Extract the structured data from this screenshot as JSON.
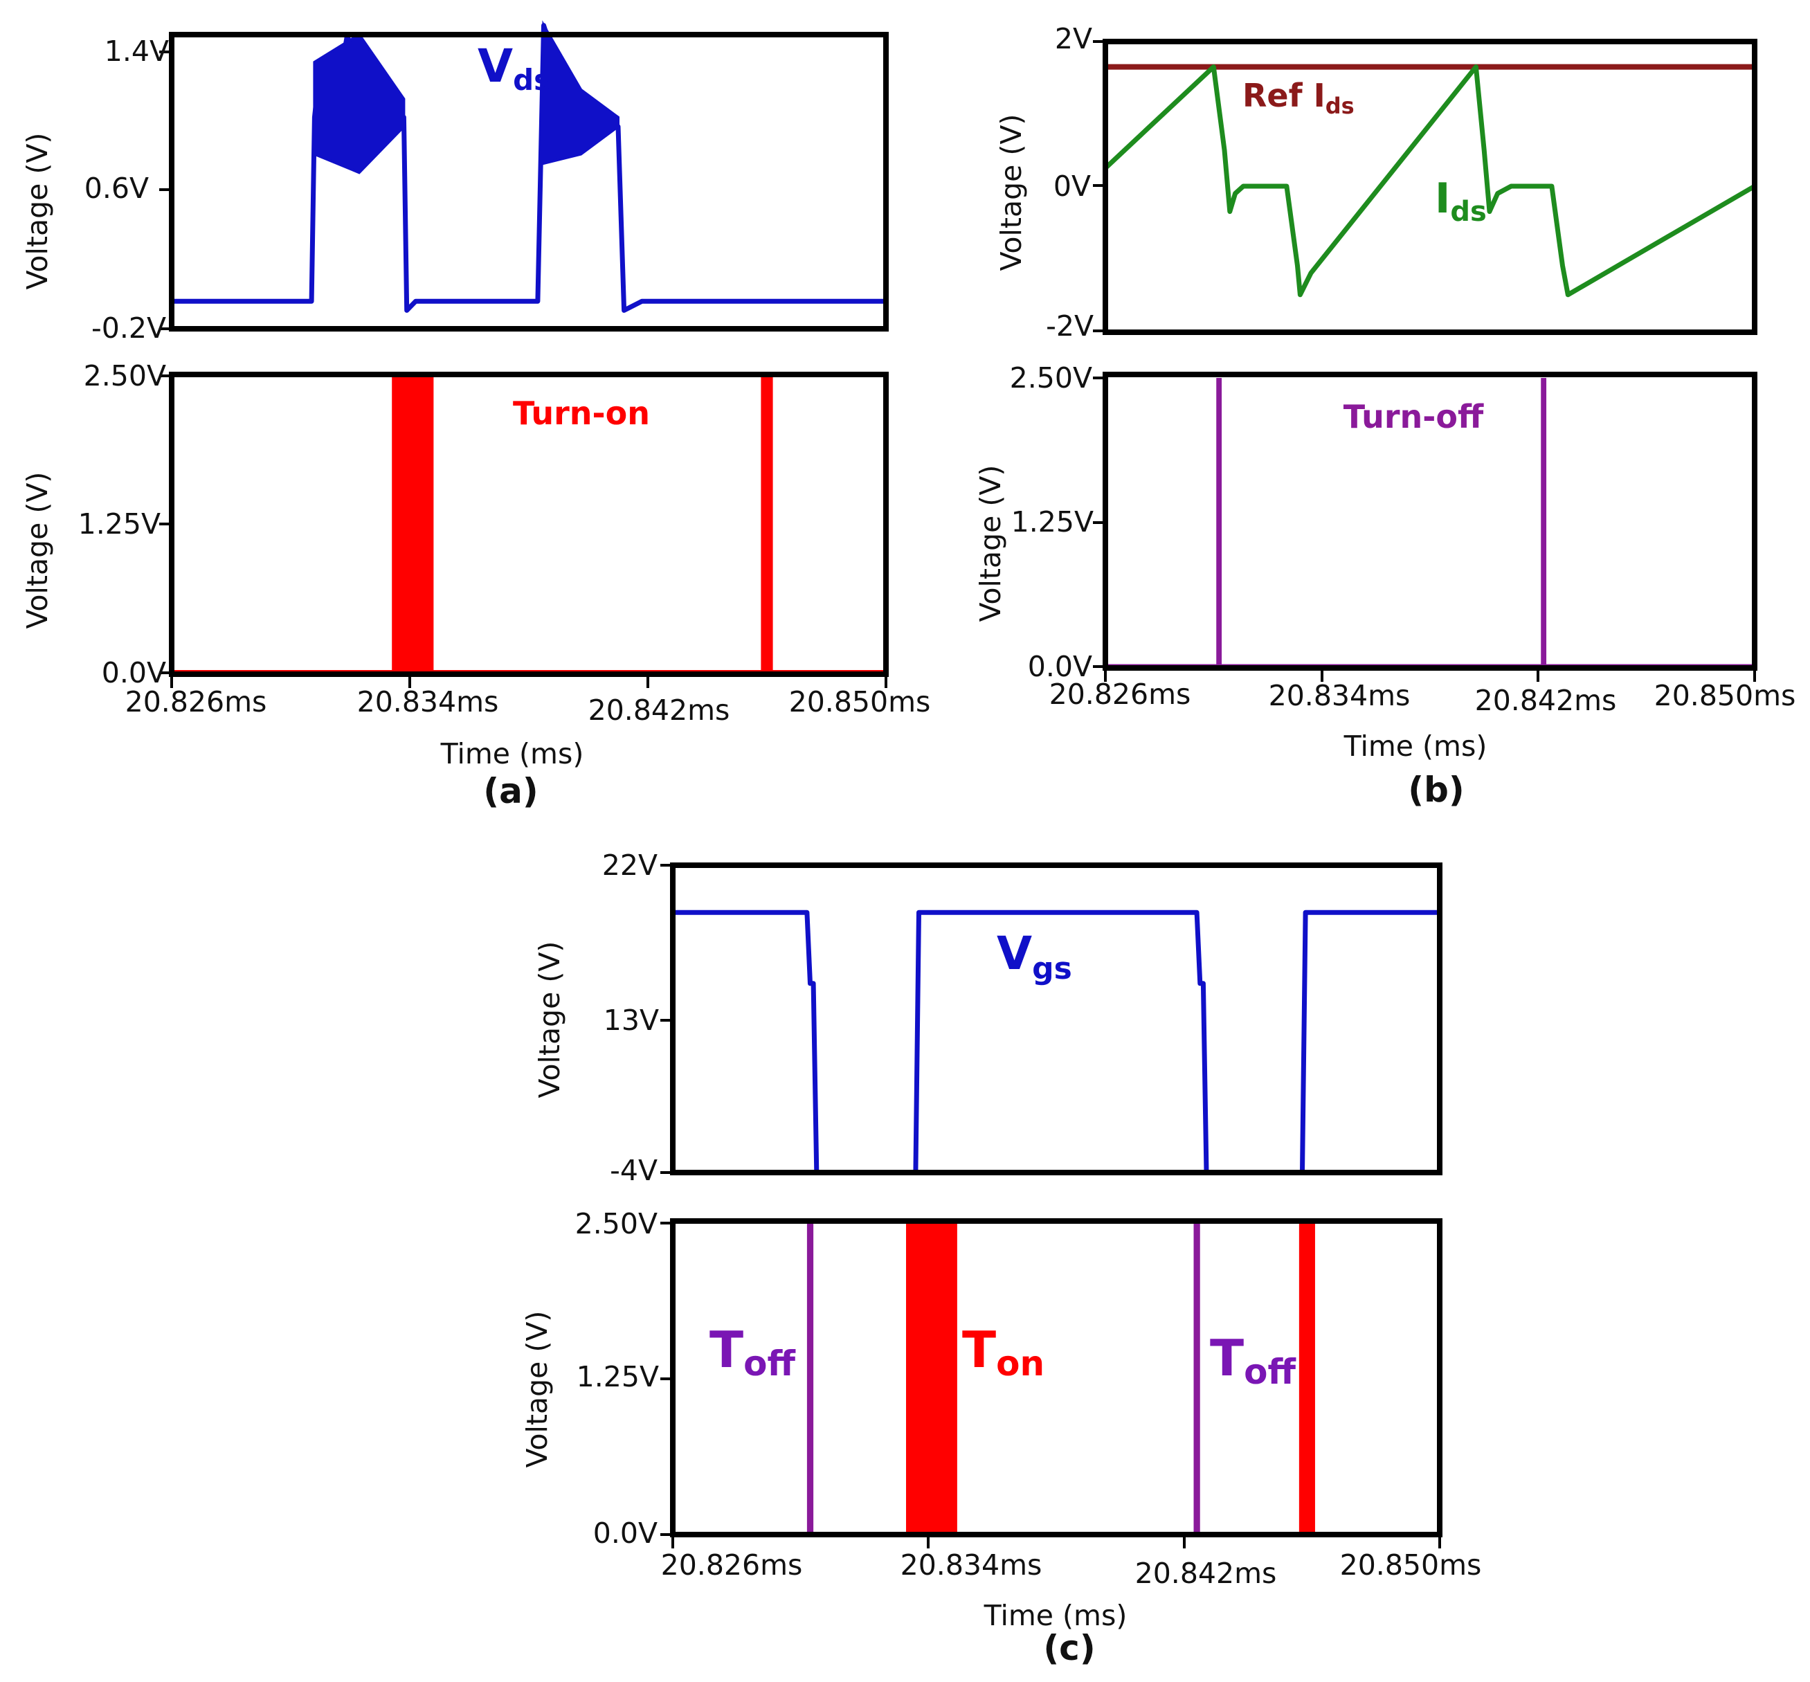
{
  "colors": {
    "vds": "#1010c8",
    "turn_on": "#ff0000",
    "ref_ids": "#8b1a1a",
    "ids": "#1e8c1e",
    "turn_off": "#8a1a9a",
    "vgs": "#1010c8",
    "ton": "#ff0000",
    "toff": "#8a1a9a",
    "ann_toff": "#7a16b4",
    "axis": "#000000"
  },
  "chart_data": [
    {
      "id": "a_top",
      "panel": "(a)",
      "type": "line",
      "title": "",
      "xlabel": "",
      "ylabel": "Voltage (V)",
      "xlim": [
        20.826,
        20.85
      ],
      "ylim": [
        -0.2,
        1.4
      ],
      "yticks": [
        "1.4V",
        "0.6V",
        "-0.2V"
      ],
      "annotation": {
        "main": "V",
        "sub": "ds"
      },
      "series": [
        {
          "name": "V_ds",
          "x": [
            20.826,
            20.8307,
            20.8308,
            20.831,
            20.8317,
            20.8319,
            20.8324,
            20.8338,
            20.8339,
            20.8342,
            20.8345,
            20.8383,
            20.8385,
            20.839,
            20.8406,
            20.841,
            20.8412,
            20.8418,
            20.85
          ],
          "values": [
            -0.05,
            -0.05,
            0.95,
            1.25,
            1.2,
            1.4,
            1.05,
            0.95,
            -0.1,
            -0.05,
            -0.05,
            -0.05,
            1.45,
            1.2,
            0.95,
            0.9,
            -0.1,
            -0.05,
            -0.05
          ]
        }
      ]
    },
    {
      "id": "a_bottom",
      "panel": "(a)",
      "type": "line",
      "title": "",
      "xlabel": "Time (ms)",
      "ylabel": "Voltage (V)",
      "xlim": [
        20.826,
        20.85
      ],
      "ylim": [
        0.0,
        2.5
      ],
      "yticks": [
        "2.50V",
        "1.25V",
        "0.0V"
      ],
      "xticks": [
        "20.826ms",
        "20.834ms",
        "20.842ms",
        "20.850ms"
      ],
      "annotation": {
        "main": "Turn-on"
      },
      "series": [
        {
          "name": "Turn-on",
          "pulses": [
            [
              20.8334,
              20.8348
            ],
            [
              20.8458,
              20.8462
            ]
          ],
          "high": 2.5,
          "low": 0.0
        }
      ]
    },
    {
      "id": "b_top",
      "panel": "(b)",
      "type": "line",
      "title": "",
      "xlabel": "",
      "ylabel": "Voltage (V)",
      "xlim": [
        20.826,
        20.85
      ],
      "ylim": [
        -2,
        2
      ],
      "yticks": [
        "2V",
        "0V",
        "-2V"
      ],
      "annotations": [
        {
          "main": "Ref I",
          "sub": "ds"
        },
        {
          "main": "I",
          "sub": "ds"
        }
      ],
      "series": [
        {
          "name": "Ref I_ds",
          "x": [
            20.826,
            20.85
          ],
          "values": [
            1.65,
            1.65
          ]
        },
        {
          "name": "I_ds",
          "x": [
            20.826,
            20.83,
            20.8304,
            20.8306,
            20.8308,
            20.8311,
            20.832,
            20.8327,
            20.8331,
            20.8332,
            20.8336,
            20.8397,
            20.84,
            20.8402,
            20.8405,
            20.841,
            20.8418,
            20.8425,
            20.8429,
            20.8431,
            20.85
          ],
          "values": [
            0.25,
            1.65,
            0.5,
            -0.35,
            -0.1,
            0.0,
            0.0,
            0.0,
            -1.1,
            -1.5,
            -1.2,
            1.65,
            0.5,
            -0.35,
            -0.1,
            0.0,
            0.0,
            0.0,
            -1.1,
            -1.5,
            0.0
          ]
        }
      ]
    },
    {
      "id": "b_bottom",
      "panel": "(b)",
      "type": "line",
      "title": "",
      "xlabel": "Time (ms)",
      "ylabel": "Voltage (V)",
      "xlim": [
        20.826,
        20.85
      ],
      "ylim": [
        0.0,
        2.5
      ],
      "yticks": [
        "2.50V",
        "1.25V",
        "0.0V"
      ],
      "xticks": [
        "20.826ms",
        "20.834ms",
        "20.842ms",
        "20.850ms"
      ],
      "annotation": {
        "main": "Turn-off"
      },
      "series": [
        {
          "name": "Turn-off",
          "pulses": [
            [
              20.8301,
              20.8303
            ],
            [
              20.8421,
              20.8423
            ]
          ],
          "high": 2.5,
          "low": 0.0
        }
      ]
    },
    {
      "id": "c_top",
      "panel": "(c)",
      "type": "line",
      "title": "",
      "xlabel": "",
      "ylabel": "Voltage (V)",
      "xlim": [
        20.826,
        20.85
      ],
      "ylim": [
        -4,
        22
      ],
      "yticks": [
        "22V",
        "13V",
        "-4V"
      ],
      "annotation": {
        "main": "V",
        "sub": "gs"
      },
      "series": [
        {
          "name": "V_gs",
          "x": [
            20.826,
            20.8302,
            20.8303,
            20.8304,
            20.8305,
            20.8336,
            20.8337,
            20.8424,
            20.8425,
            20.8426,
            20.8427,
            20.8457,
            20.8458,
            20.85
          ],
          "values": [
            18,
            18,
            12,
            12,
            -4,
            -4,
            18,
            18,
            12,
            12,
            -4,
            -4,
            18,
            18
          ]
        }
      ]
    },
    {
      "id": "c_bottom",
      "panel": "(c)",
      "type": "line",
      "title": "",
      "xlabel": "Time (ms)",
      "ylabel": "Voltage (V)",
      "xlim": [
        20.826,
        20.85
      ],
      "ylim": [
        0.0,
        2.5
      ],
      "yticks": [
        "2.50V",
        "1.25V",
        "0.0V"
      ],
      "xticks": [
        "20.826ms",
        "20.834ms",
        "20.842ms",
        "20.850ms"
      ],
      "annotations": [
        {
          "main": "T",
          "sub": "off"
        },
        {
          "main": "T",
          "sub": "on"
        },
        {
          "main": "T",
          "sub": "off"
        }
      ],
      "series": [
        {
          "name": "T_off",
          "pulses": [
            [
              20.8302,
              20.8304
            ],
            [
              20.8423,
              20.8425
            ]
          ],
          "high": 2.5,
          "low": 0.0
        },
        {
          "name": "T_on",
          "pulses": [
            [
              20.8333,
              20.8349
            ],
            [
              20.8456,
              20.8461
            ]
          ],
          "high": 2.5,
          "low": 0.0
        }
      ]
    }
  ],
  "panels": {
    "a": "(a)",
    "b": "(b)",
    "c": "(c)"
  }
}
